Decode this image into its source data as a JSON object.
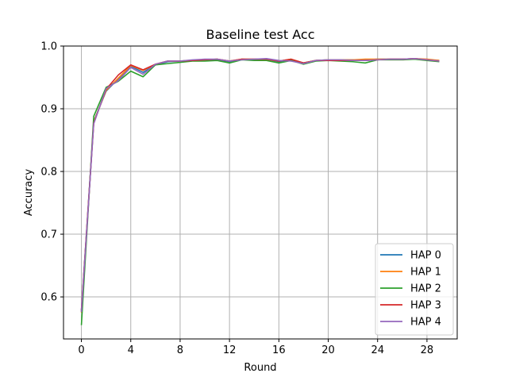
{
  "chart_data": {
    "type": "line",
    "title": "Baseline test Acc",
    "xlabel": "Round",
    "ylabel": "Accuracy",
    "xlim": [
      -1.45,
      30.45
    ],
    "ylim": [
      0.533,
      1.0
    ],
    "xticks": [
      0,
      4,
      8,
      12,
      16,
      20,
      24,
      28
    ],
    "yticks": [
      0.6,
      0.7,
      0.8,
      0.9,
      1.0
    ],
    "ytick_labels": [
      "0.6",
      "0.7",
      "0.8",
      "0.9",
      "1.0"
    ],
    "grid": true,
    "legend_position": "lower-right",
    "x": [
      0,
      1,
      2,
      3,
      4,
      5,
      6,
      7,
      8,
      9,
      10,
      11,
      12,
      13,
      14,
      15,
      16,
      17,
      18,
      19,
      20,
      21,
      22,
      23,
      24,
      25,
      26,
      27,
      28,
      29
    ],
    "series": [
      {
        "name": "HAP 0",
        "color": "#1f77b4",
        "values": [
          0.578,
          0.88,
          0.928,
          0.948,
          0.968,
          0.958,
          0.97,
          0.975,
          0.976,
          0.977,
          0.978,
          0.978,
          0.975,
          0.979,
          0.978,
          0.979,
          0.975,
          0.978,
          0.973,
          0.977,
          0.978,
          0.978,
          0.978,
          0.978,
          0.979,
          0.979,
          0.979,
          0.98,
          0.978,
          0.977
        ]
      },
      {
        "name": "HAP 1",
        "color": "#ff7f0e",
        "values": [
          0.575,
          0.879,
          0.929,
          0.949,
          0.969,
          0.961,
          0.971,
          0.976,
          0.976,
          0.977,
          0.978,
          0.979,
          0.976,
          0.979,
          0.979,
          0.979,
          0.976,
          0.979,
          0.973,
          0.977,
          0.978,
          0.978,
          0.978,
          0.979,
          0.979,
          0.979,
          0.979,
          0.98,
          0.979,
          0.977
        ]
      },
      {
        "name": "HAP 2",
        "color": "#2ca02c",
        "values": [
          0.555,
          0.888,
          0.934,
          0.944,
          0.96,
          0.951,
          0.97,
          0.972,
          0.974,
          0.976,
          0.976,
          0.977,
          0.973,
          0.978,
          0.977,
          0.977,
          0.973,
          0.977,
          0.971,
          0.976,
          0.977,
          0.976,
          0.975,
          0.973,
          0.978,
          0.978,
          0.978,
          0.979,
          0.977,
          0.975
        ]
      },
      {
        "name": "HAP 3",
        "color": "#d62728",
        "values": [
          0.579,
          0.877,
          0.931,
          0.954,
          0.97,
          0.962,
          0.971,
          0.976,
          0.976,
          0.977,
          0.978,
          0.979,
          0.976,
          0.979,
          0.979,
          0.979,
          0.976,
          0.979,
          0.973,
          0.977,
          0.977,
          0.977,
          0.977,
          0.977,
          0.978,
          0.979,
          0.979,
          0.98,
          0.978,
          0.976
        ]
      },
      {
        "name": "HAP 4",
        "color": "#9467bd",
        "values": [
          0.576,
          0.876,
          0.932,
          0.945,
          0.966,
          0.955,
          0.971,
          0.976,
          0.976,
          0.978,
          0.979,
          0.979,
          0.976,
          0.978,
          0.979,
          0.98,
          0.977,
          0.976,
          0.972,
          0.977,
          0.978,
          0.978,
          0.977,
          0.977,
          0.978,
          0.979,
          0.979,
          0.98,
          0.978,
          0.976
        ]
      }
    ]
  }
}
